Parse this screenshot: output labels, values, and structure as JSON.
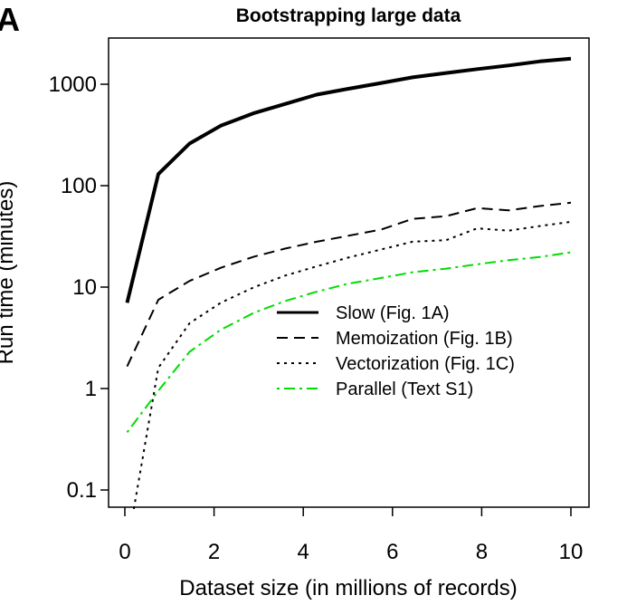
{
  "panel_label": "A",
  "chart_data": {
    "type": "line",
    "title": "Bootstrapping large data",
    "xlabel": "Dataset size (in millions of records)",
    "ylabel": "Run time (minutes)",
    "yscale": "log",
    "xlim": [
      -0.3,
      10.3
    ],
    "ylim": [
      0.06,
      2500
    ],
    "x_ticks": [
      0,
      2,
      4,
      6,
      8,
      10
    ],
    "x_tick_labels": [
      "0",
      "2",
      "4",
      "6",
      "8",
      "10"
    ],
    "y_ticks": [
      0.1,
      1,
      10,
      100,
      1000
    ],
    "y_tick_labels": [
      "0.1",
      "1",
      "10",
      "100",
      "1000"
    ],
    "grid": false,
    "legend_position": "center-right",
    "series": [
      {
        "name": "Slow (Fig. 1A)",
        "style": "solid-thick",
        "color": "#000000",
        "x": [
          0.05,
          0.75,
          1.45,
          2.15,
          2.9,
          3.6,
          4.3,
          5.0,
          5.75,
          6.45,
          7.2,
          7.9,
          8.6,
          9.3,
          10.0
        ],
        "y": [
          7,
          130,
          260,
          390,
          520,
          640,
          790,
          900,
          1030,
          1170,
          1290,
          1410,
          1530,
          1680,
          1790
        ]
      },
      {
        "name": "Memoization (Fig. 1B)",
        "style": "dashed",
        "color": "#000000",
        "x": [
          0.05,
          0.75,
          1.45,
          2.15,
          2.9,
          3.6,
          4.3,
          5.0,
          5.75,
          6.45,
          7.2,
          7.9,
          8.6,
          9.3,
          10.0
        ],
        "y": [
          1.65,
          7.5,
          11.5,
          15.5,
          20,
          24,
          28,
          32,
          37,
          47,
          50,
          60,
          57,
          63,
          68
        ]
      },
      {
        "name": "Vectorization (Fig. 1C)",
        "style": "dotted",
        "color": "#000000",
        "x": [
          0.2,
          0.75,
          1.45,
          2.15,
          2.9,
          3.6,
          4.3,
          5.0,
          5.75,
          6.45,
          7.2,
          7.9,
          8.6,
          9.3,
          10.0
        ],
        "y": [
          0.065,
          1.6,
          4.4,
          7.0,
          10.0,
          13,
          16,
          19.5,
          23.5,
          28,
          29,
          38,
          36,
          40,
          44
        ]
      },
      {
        "name": "Parallel (Text S1)",
        "style": "dashdot",
        "color": "#00dd00",
        "x": [
          0.05,
          0.75,
          1.45,
          2.15,
          2.9,
          3.6,
          4.3,
          5.0,
          5.75,
          6.45,
          7.2,
          7.9,
          8.6,
          9.3,
          10.0
        ],
        "y": [
          0.37,
          0.95,
          2.3,
          3.8,
          5.6,
          7.3,
          9.0,
          10.8,
          12.3,
          14,
          15.2,
          16.8,
          18.4,
          19.8,
          22
        ]
      }
    ]
  }
}
